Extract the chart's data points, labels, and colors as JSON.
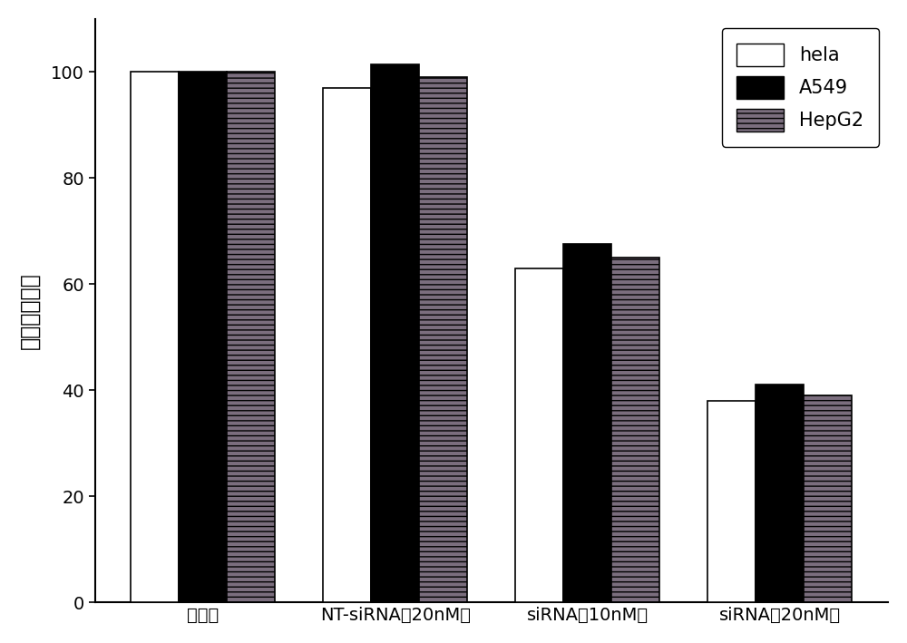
{
  "categories": [
    "未转染",
    "NT-siRNA（20nM）",
    "siRNA（10nM）",
    "siRNA（20nM）"
  ],
  "hela_values": [
    100,
    97,
    63,
    38
  ],
  "a549_values": [
    100,
    101.5,
    67.5,
    41
  ],
  "hepg2_values": [
    100,
    99,
    65,
    39
  ],
  "hela_color": "#ffffff",
  "a549_color": "#000000",
  "hepg2_color": "#7b6e7e",
  "hepg2_hatch": "---",
  "hepg2_hatch_color": "#00aa00",
  "ylabel": "抑制率（％）",
  "ylim": [
    0,
    110
  ],
  "yticks": [
    0,
    20,
    40,
    60,
    80,
    100
  ],
  "legend_labels": [
    "hela",
    "A549",
    "HepG2"
  ],
  "bar_width": 0.25,
  "edgecolor": "#000000",
  "legend_fontsize": 15,
  "ylabel_fontsize": 17,
  "tick_fontsize": 14,
  "xticklabel_fontsize": 14
}
